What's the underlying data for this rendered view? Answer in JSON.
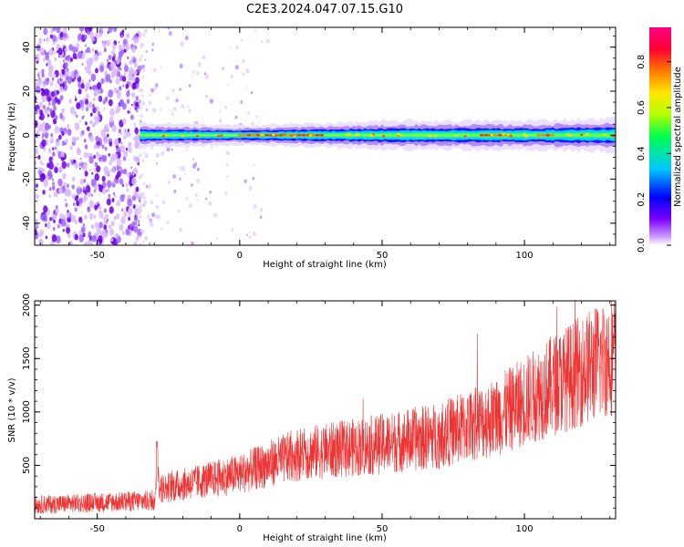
{
  "title": "C2E3.2024.047.07.15.G10",
  "chart_data": [
    {
      "type": "heatmap",
      "xlabel": "Height of straight line (km)",
      "ylabel": "Frequency (Hz)",
      "xlim": [
        -72,
        132
      ],
      "ylim": [
        -50,
        49
      ],
      "x_ticks": [
        -50,
        0,
        50,
        100
      ],
      "y_ticks": [
        -40,
        -20,
        0,
        20,
        40
      ],
      "colorbar": {
        "label": "Normalized spectral amplitude",
        "range": [
          0.0,
          0.95
        ],
        "ticks": [
          "0.0",
          "0.2",
          "0.4",
          "0.6",
          "0.8"
        ],
        "tick_values": [
          0.0,
          0.2,
          0.4,
          0.6,
          0.8
        ],
        "colormap": [
          "#ffffff",
          "#7b00ff",
          "#0000ff",
          "#00c8ff",
          "#00ff4c",
          "#b4ff00",
          "#ffe600",
          "#ff7a00",
          "#ff0033",
          "#ff0088"
        ]
      },
      "noise_region_x": [
        -72,
        -35
      ],
      "signal": {
        "x_start": -35,
        "x_end": 132,
        "center_hz": 0,
        "halfwidth_points": [
          [
            -35,
            2.5
          ],
          [
            0,
            2.0
          ],
          [
            30,
            2.5
          ],
          [
            60,
            3.0
          ],
          [
            100,
            3.0
          ],
          [
            132,
            3.5
          ]
        ],
        "strong_segments_x": [
          [
            0,
            30
          ],
          [
            85,
            95
          ],
          [
            105,
            110
          ]
        ]
      }
    },
    {
      "type": "line",
      "xlabel": "Height of straight line (km)",
      "ylabel": "SNR (10 * v/v)",
      "xlim": [
        -72,
        132
      ],
      "ylim": [
        0,
        2040
      ],
      "x_ticks": [
        -50,
        0,
        50,
        100
      ],
      "y_ticks": [
        500,
        1000,
        1500,
        2000
      ],
      "color": "#ee3333",
      "trend_points": [
        [
          -72,
          130
        ],
        [
          -30,
          170
        ],
        [
          -29,
          450
        ],
        [
          -28,
          280
        ],
        [
          0,
          420
        ],
        [
          20,
          600
        ],
        [
          50,
          700
        ],
        [
          70,
          780
        ],
        [
          90,
          950
        ],
        [
          110,
          1250
        ],
        [
          132,
          1550
        ]
      ],
      "noise_amplitude": "proportional",
      "spike_x": -29,
      "spike_value": 730
    }
  ]
}
